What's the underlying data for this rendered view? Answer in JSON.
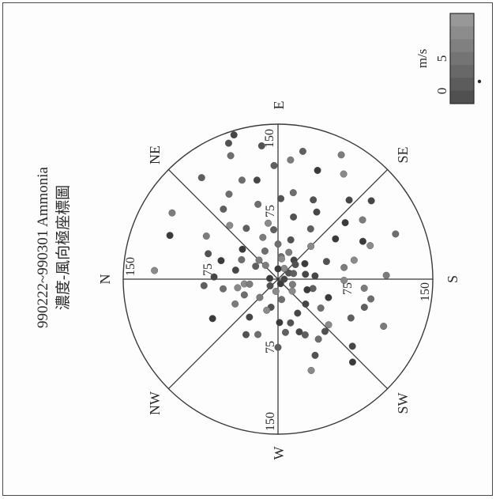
{
  "chart_data": {
    "type": "scatter",
    "title": "990222~990301 Ammonia",
    "subtitle": "濃度-風向極座標圖",
    "directions": [
      "N",
      "NE",
      "E",
      "SE",
      "S",
      "SW",
      "W",
      "NW"
    ],
    "radial_ticks": [
      "75",
      "150"
    ],
    "rlim": [
      0,
      150
    ],
    "legend": {
      "unit": "m/s",
      "tick_labels": [
        "0",
        "5"
      ],
      "range": [
        0,
        8
      ],
      "placement": "bottom-right"
    },
    "note": "",
    "series": [
      {
        "points": [
          [
            70,
            48
          ],
          [
            43,
            70
          ],
          [
            22,
            98
          ],
          [
            58,
            123
          ],
          [
            12,
            150
          ],
          [
            36,
            175
          ],
          [
            52,
            200
          ],
          [
            66,
            222
          ],
          [
            81,
            31
          ],
          [
            95,
            60
          ],
          [
            110,
            88
          ],
          [
            84,
            114
          ],
          [
            103,
            132
          ],
          [
            90,
            156
          ],
          [
            64,
            181
          ],
          [
            112,
            204
          ],
          [
            70,
            236
          ],
          [
            52,
            262
          ],
          [
            28,
            284
          ],
          [
            46,
            307
          ],
          [
            74,
            329
          ],
          [
            40,
            348
          ],
          [
            18,
            48
          ],
          [
            30,
            65
          ],
          [
            48,
            85
          ],
          [
            62,
            104
          ],
          [
            75,
            120
          ],
          [
            85,
            140
          ],
          [
            95,
            160
          ],
          [
            105,
            178
          ],
          [
            92,
            192
          ],
          [
            80,
            208
          ],
          [
            68,
            228
          ],
          [
            55,
            248
          ],
          [
            42,
            268
          ],
          [
            32,
            290
          ],
          [
            25,
            315
          ],
          [
            36,
            335
          ],
          [
            58,
            58
          ],
          [
            40,
            108
          ],
          [
            24,
            130
          ],
          [
            68,
            145
          ],
          [
            76,
            166
          ],
          [
            84,
            186
          ],
          [
            50,
            214
          ],
          [
            60,
            244
          ],
          [
            78,
            92
          ],
          [
            98,
            78
          ],
          [
            112,
            110
          ],
          [
            120,
            122
          ],
          [
            135,
            117
          ],
          [
            128,
            69
          ],
          [
            123,
            53
          ],
          [
            130,
            83
          ],
          [
            118,
            140
          ],
          [
            113,
            22
          ],
          [
            120,
            4
          ],
          [
            121,
            32
          ],
          [
            122,
            159
          ],
          [
            126,
            101
          ],
          [
            140,
            70
          ],
          [
            146,
            73
          ],
          [
            8,
            5
          ],
          [
            12,
            120
          ],
          [
            15,
            200
          ],
          [
            20,
            260
          ],
          [
            25,
            30
          ],
          [
            10,
            320
          ],
          [
            6,
            180
          ],
          [
            45,
            40
          ],
          [
            55,
            80
          ],
          [
            65,
            170
          ],
          [
            85,
            100
          ],
          [
            88,
            198
          ],
          [
            62,
            300
          ],
          [
            38,
            240
          ],
          [
            30,
            150
          ],
          [
            45,
            135
          ],
          [
            100,
            145
          ],
          [
            75,
            75
          ],
          [
            35,
            195
          ],
          [
            50,
            160
          ],
          [
            42,
            12
          ],
          [
            58,
            18
          ],
          [
            33,
            352
          ],
          [
            48,
            330
          ],
          [
            57,
            290
          ],
          [
            66,
            270
          ],
          [
            82,
            244
          ],
          [
            97,
            222
          ],
          [
            108,
            228
          ],
          [
            94,
            250
          ],
          [
            116,
            96
          ],
          [
            102,
            70
          ],
          [
            86,
            52
          ],
          [
            72,
            20
          ],
          [
            62,
            2
          ],
          [
            10,
            90
          ],
          [
            20,
            100
          ],
          [
            28,
            112
          ],
          [
            34,
            90
          ],
          [
            16,
            160
          ],
          [
            22,
            140
          ],
          [
            27,
            170
          ],
          [
            5,
            240
          ],
          [
            12,
            280
          ],
          [
            28,
            350
          ],
          [
            54,
            350
          ],
          [
            72,
            355
          ],
          [
            44,
            254
          ],
          [
            36,
            222
          ],
          [
            30,
            200
          ],
          [
            18,
            220
          ],
          [
            26,
            45
          ],
          [
            40,
            28
          ]
        ],
        "colors": [
          "#8a8a8a",
          "#7c7c7c",
          "#6e6e6e",
          "#5f5f5f",
          "#525252",
          "#464646",
          "#3a3a3a"
        ]
      }
    ]
  }
}
